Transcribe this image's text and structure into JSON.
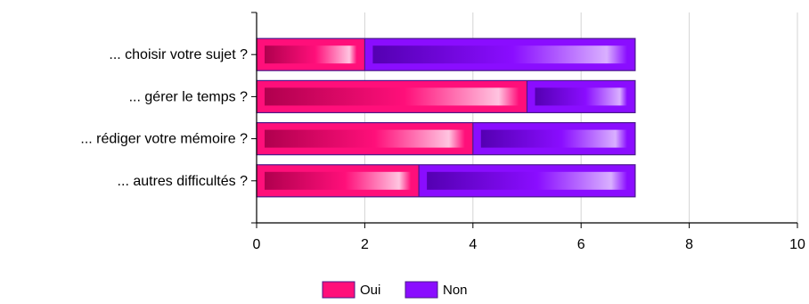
{
  "chart_data": {
    "type": "bar",
    "orientation": "horizontal",
    "stacked": true,
    "categories": [
      "... choisir votre sujet ?",
      "... gérer le temps ?",
      "... rédiger votre mémoire ?",
      "... autres difficultés ?"
    ],
    "series": [
      {
        "name": "Oui",
        "values": [
          2,
          5,
          4,
          3
        ],
        "color": "#ff0f7a",
        "dark": "#b0004e",
        "light": "#ffc4e0"
      },
      {
        "name": "Non",
        "values": [
          5,
          2,
          3,
          4
        ],
        "color": "#8a0dff",
        "dark": "#5400b2",
        "light": "#d9b0ff"
      }
    ],
    "xlim": [
      0,
      10
    ],
    "xticks": [
      "0",
      "2",
      "4",
      "6",
      "8",
      "10"
    ],
    "grid": true,
    "legend_position": "bottom-center"
  }
}
